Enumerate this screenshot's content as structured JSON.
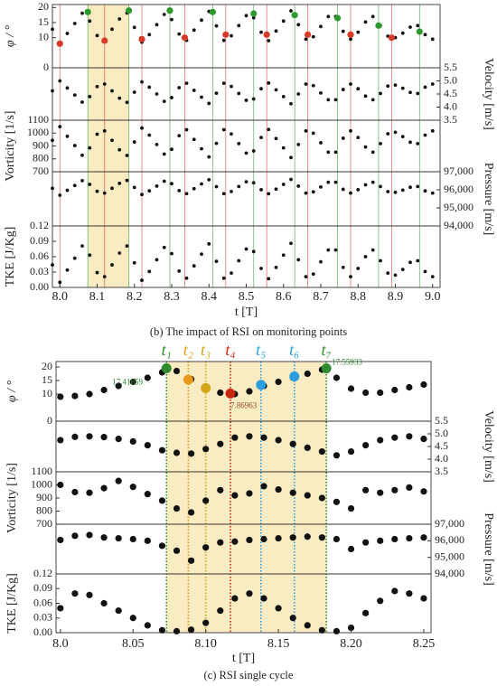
{
  "chart_data": [
    {
      "type": "scatter",
      "caption": "(b) The impact of RSI on monitoring points",
      "xlabel": "t [T]",
      "xlim": [
        7.98,
        9.02
      ],
      "xticks": [
        {
          "value": 8,
          "label": "8.0"
        },
        8.1,
        8.2,
        8.3,
        8.4,
        8.5,
        8.6,
        8.7,
        8.8,
        8.9,
        {
          "value": 9,
          "label": "9.0"
        }
      ],
      "dot_color": "#111111",
      "shade_color": "#f7e4ad",
      "shaded_range": [
        8.075,
        8.185
      ],
      "x": [
        7.98,
        8.0,
        8.02,
        8.04,
        8.06,
        8.08,
        8.1,
        8.12,
        8.14,
        8.16,
        8.18,
        8.2,
        8.22,
        8.24,
        8.26,
        8.28,
        8.3,
        8.32,
        8.34,
        8.36,
        8.38,
        8.4,
        8.42,
        8.44,
        8.46,
        8.48,
        8.5,
        8.52,
        8.54,
        8.56,
        8.58,
        8.6,
        8.62,
        8.64,
        8.66,
        8.68,
        8.7,
        8.72,
        8.74,
        8.76,
        8.78,
        8.8,
        8.82,
        8.84,
        8.86,
        8.88,
        8.9,
        8.92,
        8.94,
        8.96,
        8.98,
        9.0
      ],
      "maxima": {
        "color": "#2e9a2e",
        "x": [
          8.075,
          8.185,
          8.295,
          8.41,
          8.52,
          8.63,
          8.745,
          8.855,
          8.965
        ],
        "values": [
          18.5,
          19,
          19,
          18.5,
          18,
          17.5,
          16.5,
          14,
          12
        ]
      },
      "minima": {
        "color": "#d83a2a",
        "x": [
          8.0,
          8.12,
          8.22,
          8.335,
          8.445,
          8.555,
          8.665,
          8.78,
          8.89
        ],
        "values": [
          8,
          9,
          9.5,
          10,
          11,
          11,
          11,
          11,
          10
        ]
      },
      "panels": [
        {
          "ylabel": "φ / °",
          "side": "left",
          "ylim": [
            0,
            21
          ],
          "yticks": [
            20,
            15,
            10,
            0
          ],
          "values": [
            12.8,
            8,
            11.4,
            14.7,
            18.1,
            15.5,
            10.7,
            9.5,
            12.8,
            16.2,
            18.2,
            13.4,
            8.5,
            11,
            14.3,
            17.7,
            16,
            11.2,
            9.1,
            12.5,
            15.8,
            18.7,
            13.9,
            9.1,
            10.6,
            14,
            17.3,
            16.6,
            11.8,
            9,
            12.2,
            15.5,
            18.9,
            14.3,
            9.5,
            10.3,
            13.7,
            17,
            17,
            12.1,
            9.5,
            11.8,
            15.2,
            17,
            14,
            10.5,
            10,
            11.5,
            13.5,
            14,
            11,
            9.5
          ]
        },
        {
          "ylabel": "Velocity [m/s]",
          "side": "right",
          "ylim": [
            3.5,
            5.5
          ],
          "yticks": [
            5.5,
            {
              "value": 5,
              "label": "5.0"
            },
            4.5,
            {
              "value": 4,
              "label": "4.0"
            },
            3.5
          ],
          "values": [
            4.62,
            5.0,
            4.73,
            4.46,
            4.19,
            4.4,
            4.78,
            4.88,
            4.62,
            4.34,
            4.18,
            4.57,
            4.96,
            4.76,
            4.5,
            4.22,
            4.36,
            4.74,
            4.91,
            4.64,
            4.38,
            4.14,
            4.53,
            4.91,
            4.79,
            4.52,
            4.26,
            4.31,
            4.7,
            4.92,
            4.66,
            4.4,
            4.13,
            4.5,
            4.88,
            4.82,
            4.54,
            4.28,
            4.28,
            4.67,
            4.88,
            4.7,
            4.42,
            4.28,
            4.52,
            4.8,
            4.84,
            4.72,
            4.56,
            4.52,
            4.76,
            4.88
          ]
        },
        {
          "ylabel": "Vorticity [1/s]",
          "side": "left",
          "ylim": [
            700,
            1100
          ],
          "yticks": [
            1100,
            1000,
            900,
            800,
            700
          ],
          "values": [
            944,
            1050,
            975,
            903,
            828,
            885,
            991,
            1017,
            944,
            870,
            826,
            931,
            1039,
            984,
            911,
            837,
            874,
            980,
            1026,
            951,
            878,
            815,
            920,
            1026,
            993,
            918,
            845,
            861,
            966,
            1028,
            958,
            885,
            810,
            911,
            1017,
            999,
            925,
            852,
            852,
            960,
            1017,
            966,
            892,
            852,
            918,
            995,
            1006,
            973,
            929,
            918,
            984,
            1017
          ]
        },
        {
          "ylabel": "Pressure [m/s]",
          "side": "right",
          "ylim": [
            94000,
            97000
          ],
          "yticks": [
            {
              "value": 97000,
              "label": "97,000"
            },
            {
              "value": 96000,
              "label": "96,000"
            },
            {
              "value": 95000,
              "label": "95,000"
            },
            {
              "value": 94000,
              "label": "94,000"
            }
          ],
          "values": [
            96084,
            95700,
            95972,
            96236,
            96508,
            96300,
            95916,
            95820,
            96084,
            96356,
            96516,
            96132,
            95740,
            95940,
            96204,
            96476,
            96340,
            95956,
            95788,
            96060,
            96324,
            96556,
            96172,
            95788,
            95908,
            96180,
            96444,
            96388,
            96004,
            95780,
            96036,
            96300,
            96572,
            96204,
            95820,
            95884,
            96156,
            96420,
            96420,
            96028,
            95820,
            96004,
            96276,
            96420,
            96180,
            95900,
            95860,
            95980,
            96140,
            96180,
            95940,
            95820
          ]
        },
        {
          "ylabel": "TKE [J/Kg]",
          "side": "left",
          "ylim": [
            0,
            0.12
          ],
          "yticks": [
            0.12,
            0.09,
            0.06,
            0.03,
            {
              "value": 0,
              "label": "0.00"
            }
          ],
          "values": [
            0.044,
            0.01,
            0.034,
            0.057,
            0.081,
            0.063,
            0.029,
            0.021,
            0.044,
            0.067,
            0.081,
            0.048,
            0.014,
            0.031,
            0.054,
            0.078,
            0.066,
            0.032,
            0.018,
            0.042,
            0.065,
            0.085,
            0.051,
            0.018,
            0.028,
            0.052,
            0.075,
            0.07,
            0.037,
            0.017,
            0.039,
            0.063,
            0.086,
            0.054,
            0.021,
            0.026,
            0.05,
            0.073,
            0.073,
            0.039,
            0.021,
            0.037,
            0.06,
            0.073,
            0.052,
            0.028,
            0.024,
            0.035,
            0.049,
            0.052,
            0.031,
            0.021
          ]
        }
      ]
    },
    {
      "type": "scatter",
      "caption": "(c) RSI single cycle",
      "xlabel": "t [T]",
      "xlim": [
        7.997,
        8.255
      ],
      "xticks": [
        {
          "value": 8,
          "label": "8.0"
        },
        8.05,
        {
          "value": 8.1,
          "label": "8.10"
        },
        8.15,
        {
          "value": 8.2,
          "label": "8.20"
        },
        8.25
      ],
      "dot_color": "#111111",
      "shade_color": "#f7e4ad",
      "shaded_range": [
        8.073,
        8.183
      ],
      "x": [
        8.0,
        8.01,
        8.02,
        8.03,
        8.04,
        8.05,
        8.06,
        8.07,
        8.08,
        8.09,
        8.1,
        8.11,
        8.12,
        8.13,
        8.14,
        8.15,
        8.16,
        8.17,
        8.18,
        8.19,
        8.2,
        8.21,
        8.22,
        8.23,
        8.24,
        8.25
      ],
      "markers": [
        {
          "label": "t₁",
          "color": "#2e8b2e",
          "x": 8.073,
          "value": 19.5
        },
        {
          "label": "t₂",
          "color": "#e89a1c",
          "x": 8.088,
          "value": 15.3
        },
        {
          "label": "t₃",
          "color": "#d4a514",
          "x": 8.1,
          "value": 12.2
        },
        {
          "label": "t₄",
          "color": "#c8260e",
          "x": 8.117,
          "value": 10.2
        },
        {
          "label": "t₅",
          "color": "#2a9ee0",
          "x": 8.138,
          "value": 13.4
        },
        {
          "label": "t₆",
          "color": "#2a9ee0",
          "x": 8.161,
          "value": 16.5
        },
        {
          "label": "t₇",
          "color": "#2e8b2e",
          "x": 8.183,
          "value": 19.5
        }
      ],
      "annotations": [
        "17.41859",
        "7.86963",
        "17.55933"
      ],
      "panels": [
        {
          "ylabel": "φ / °",
          "side": "left",
          "ylim": [
            0,
            22
          ],
          "yticks": [
            20,
            15,
            10,
            0
          ],
          "values": [
            9,
            9.3,
            10,
            11.5,
            13,
            14.5,
            16,
            18,
            18.5,
            15.5,
            12.5,
            10.5,
            10,
            11,
            13,
            14.5,
            16,
            17.5,
            19,
            16,
            12,
            10.5,
            10.5,
            11.5,
            12.5,
            13.5
          ]
        },
        {
          "ylabel": "Velocity [m/s]",
          "side": "right",
          "ylim": [
            3.5,
            5.5
          ],
          "yticks": [
            5.5,
            {
              "value": 5,
              "label": "5.0"
            },
            4.5,
            {
              "value": 4,
              "label": "4.0"
            },
            3.5
          ],
          "values": [
            4.75,
            4.88,
            4.9,
            4.87,
            4.8,
            4.7,
            4.55,
            4.35,
            4.25,
            4.22,
            4.4,
            4.6,
            4.85,
            4.9,
            4.85,
            4.75,
            4.6,
            4.45,
            4.3,
            4.15,
            4.3,
            4.55,
            4.75,
            4.85,
            4.9,
            4.8
          ]
        },
        {
          "ylabel": "Vorticity [1/s]",
          "side": "left",
          "ylim": [
            700,
            1100
          ],
          "yticks": [
            1100,
            1000,
            900,
            800,
            700
          ],
          "values": [
            1000,
            945,
            940,
            975,
            1030,
            985,
            930,
            880,
            820,
            790,
            880,
            960,
            920,
            935,
            990,
            965,
            940,
            920,
            900,
            870,
            820,
            960,
            940,
            960,
            980,
            950
          ]
        },
        {
          "ylabel": "Pressure [m/s]",
          "side": "right",
          "ylim": [
            94000,
            97000
          ],
          "yticks": [
            {
              "value": 97000,
              "label": "97,000"
            },
            {
              "value": 96000,
              "label": "96,000"
            },
            {
              "value": 95000,
              "label": "95,000"
            },
            {
              "value": 94000,
              "label": "94,000"
            }
          ],
          "values": [
            96050,
            96300,
            96350,
            96200,
            96150,
            96100,
            96000,
            95700,
            95400,
            94800,
            95600,
            95900,
            95950,
            96050,
            96100,
            96150,
            96200,
            96250,
            96200,
            96100,
            95500,
            95900,
            96000,
            96100,
            96150,
            96200
          ]
        },
        {
          "ylabel": "TKE [J/Kg]",
          "side": "left",
          "ylim": [
            0,
            0.12
          ],
          "yticks": [
            0.12,
            0.09,
            0.06,
            0.03,
            {
              "value": 0,
              "label": "0.00"
            }
          ],
          "values": [
            0.05,
            0.08,
            0.077,
            0.06,
            0.045,
            0.03,
            0.015,
            0.005,
            0.003,
            0.006,
            0.02,
            0.045,
            0.07,
            0.08,
            0.07,
            0.05,
            0.03,
            0.015,
            0.005,
            0.003,
            0.01,
            0.04,
            0.065,
            0.085,
            0.08,
            0.07
          ]
        }
      ]
    }
  ]
}
